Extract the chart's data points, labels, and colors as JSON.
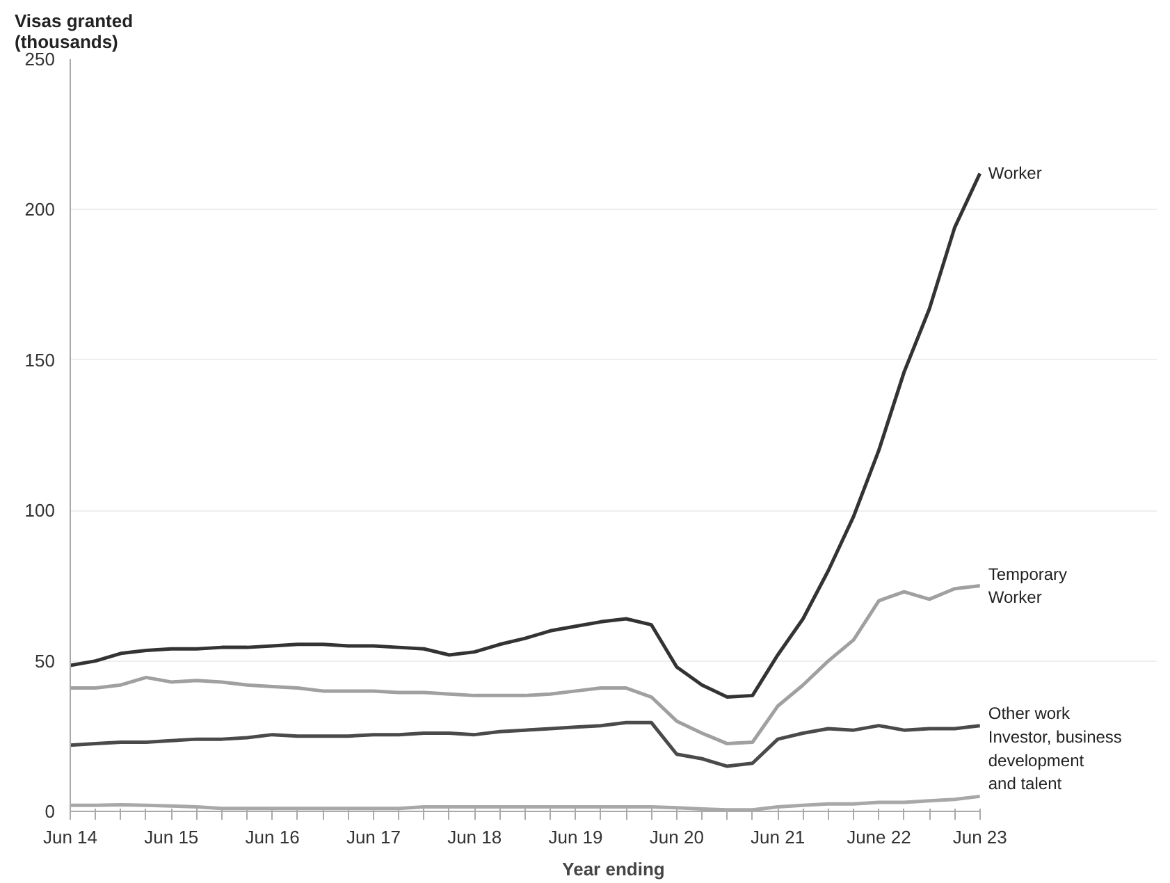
{
  "chart_data": {
    "type": "line",
    "ylabel": "Visas granted\n(thousands)",
    "xlabel": "Year ending",
    "categories": [
      "Jun 14",
      null,
      null,
      null,
      "Jun 15",
      null,
      null,
      null,
      "Jun 16",
      null,
      null,
      null,
      "Jun 17",
      null,
      null,
      null,
      "Jun 18",
      null,
      null,
      null,
      "Jun 19",
      null,
      null,
      null,
      "Jun 20",
      null,
      null,
      null,
      "Jun 21",
      null,
      null,
      null,
      "June 22",
      null,
      null,
      null,
      "Jun 23"
    ],
    "series": [
      {
        "name": "Worker",
        "color": "#333333",
        "values": [
          48.5,
          50,
          52.5,
          53.5,
          54,
          54,
          54.5,
          54.5,
          55,
          55.5,
          55.5,
          55,
          55,
          54.5,
          54,
          52,
          53,
          55.5,
          57.5,
          60,
          61.5,
          63,
          64,
          62,
          48,
          42,
          38,
          38.5,
          52,
          64,
          80,
          98,
          120,
          146,
          167,
          194,
          212
        ]
      },
      {
        "name": "Temporary\nWorker",
        "color": "#a0a0a0",
        "values": [
          41,
          41,
          42,
          44.5,
          43,
          43.5,
          43,
          42,
          41.5,
          41,
          40,
          40,
          40,
          39.5,
          39.5,
          39,
          38.5,
          38.5,
          38.5,
          39,
          40,
          41,
          41,
          38,
          30,
          26,
          22.5,
          23,
          35,
          42,
          50,
          57,
          70,
          73,
          70.5,
          74,
          75
        ]
      },
      {
        "name": "Other work",
        "color": "#4a4a4a",
        "values": [
          22,
          22.5,
          23,
          23,
          23.5,
          24,
          24,
          24.5,
          25.5,
          25,
          25,
          25,
          25.5,
          25.5,
          26,
          26,
          25.5,
          26.5,
          27,
          27.5,
          28,
          28.5,
          29.5,
          29.5,
          19,
          17.5,
          15,
          16,
          24,
          26,
          27.5,
          27,
          28.5,
          27,
          27.5,
          27.5,
          28.5
        ]
      },
      {
        "name": "Investor, business\ndevelopment\nand talent",
        "color": "#a8a8a8",
        "values": [
          2,
          2,
          2.2,
          2,
          1.8,
          1.5,
          1,
          1,
          1,
          1,
          1,
          1,
          1,
          1,
          1.5,
          1.5,
          1.5,
          1.5,
          1.5,
          1.5,
          1.5,
          1.5,
          1.5,
          1.5,
          1.2,
          0.8,
          0.5,
          0.5,
          1.5,
          2,
          2.5,
          2.5,
          3,
          3,
          3.5,
          4,
          5
        ]
      }
    ],
    "ylim": [
      0,
      250
    ],
    "yticks": [
      0,
      50,
      100,
      150,
      200,
      250
    ],
    "grid": "y",
    "legend": false
  }
}
